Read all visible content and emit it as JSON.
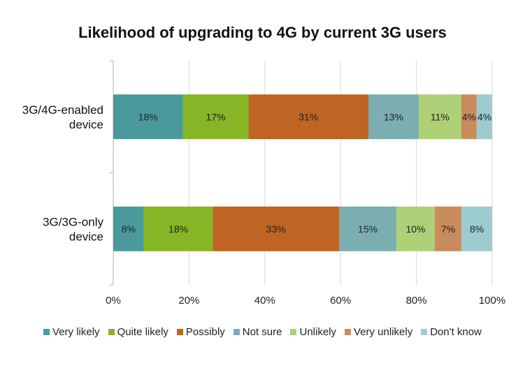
{
  "chart_data": {
    "type": "bar",
    "orientation": "horizontal",
    "stacked": "percent",
    "title": "Likelihood of upgrading to 4G by current 3G users",
    "categories": [
      "3G/4G-enabled device",
      "3G/3G-only device"
    ],
    "category_lines": [
      [
        "3G/4G-enabled",
        "device"
      ],
      [
        "3G/3G-only",
        "device"
      ]
    ],
    "series": [
      {
        "name": "Very likely",
        "color": "#4a9a9c",
        "values": [
          18,
          8
        ],
        "labels": [
          "18%",
          "8%"
        ]
      },
      {
        "name": "Quite likely",
        "color": "#86b526",
        "values": [
          17,
          18
        ],
        "labels": [
          "17%",
          "18%"
        ]
      },
      {
        "name": "Possibly",
        "color": "#bf6422",
        "values": [
          31,
          33
        ],
        "labels": [
          "31%",
          "33%"
        ]
      },
      {
        "name": "Not sure",
        "color": "#7aaeb0",
        "values": [
          13,
          15
        ],
        "labels": [
          "13%",
          "15%"
        ]
      },
      {
        "name": "Unlikely",
        "color": "#aed076",
        "values": [
          11,
          10
        ],
        "labels": [
          "11%",
          "10%"
        ]
      },
      {
        "name": "Very unlikely",
        "color": "#c88c5c",
        "values": [
          4,
          7
        ],
        "labels": [
          "4%",
          "7%"
        ]
      },
      {
        "name": "Don't know",
        "color": "#9ccccf",
        "values": [
          4,
          8
        ],
        "labels": [
          "4%",
          "8%"
        ]
      }
    ],
    "xlim": [
      0,
      100
    ],
    "xticks": [
      "0%",
      "20%",
      "40%",
      "60%",
      "80%",
      "100%"
    ],
    "grid": true,
    "legend_position": "bottom"
  }
}
